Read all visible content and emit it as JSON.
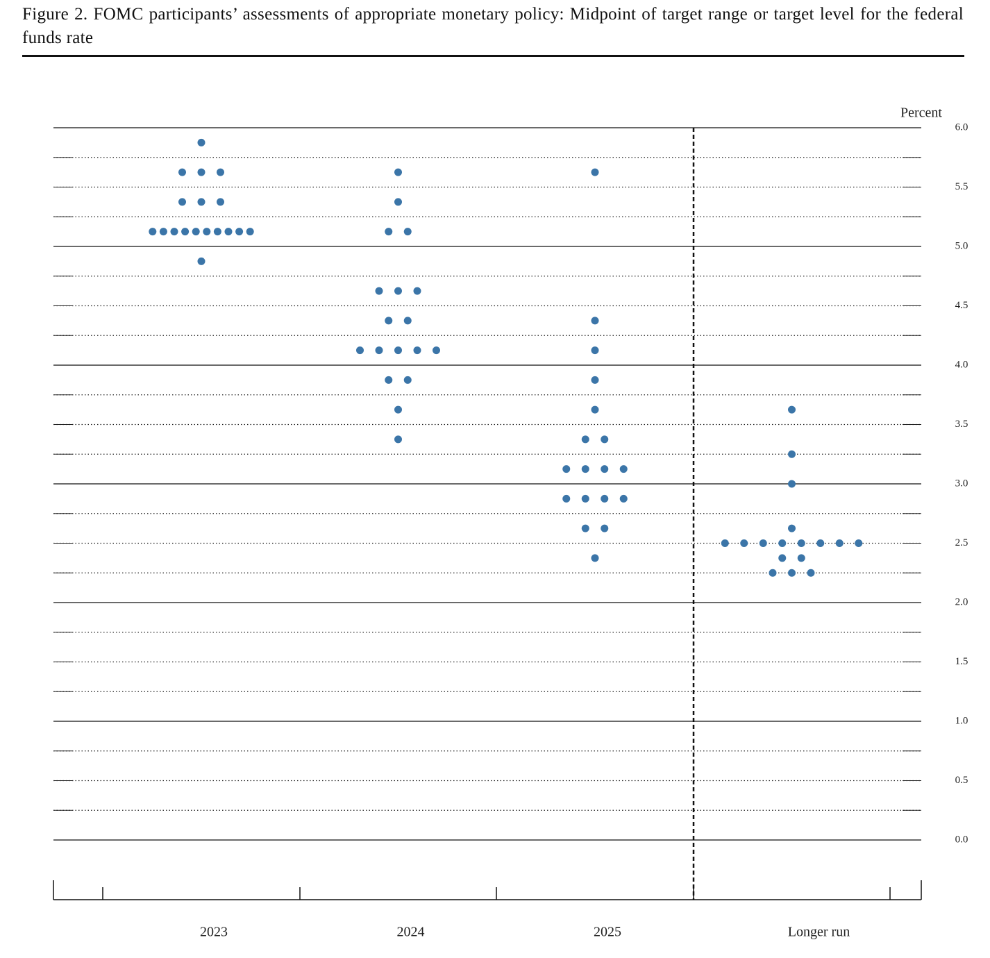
{
  "chart_data": {
    "type": "dot",
    "title": "Figure 2.  FOMC participants’ assessments of appropriate monetary policy: Midpoint of target range or target level for the federal funds rate",
    "y_axis_label": "Percent",
    "categories": [
      "2023",
      "2024",
      "2025",
      "Longer run"
    ],
    "color": "#3b75a8",
    "values": [
      [
        5.875,
        5.625,
        5.625,
        5.625,
        5.375,
        5.375,
        5.375,
        5.125,
        5.125,
        5.125,
        5.125,
        5.125,
        5.125,
        5.125,
        5.125,
        5.125,
        5.125,
        4.875
      ],
      [
        5.625,
        5.375,
        5.125,
        5.125,
        4.625,
        4.625,
        4.625,
        4.375,
        4.375,
        4.125,
        4.125,
        4.125,
        4.125,
        4.125,
        3.875,
        3.875,
        3.625,
        3.375
      ],
      [
        5.625,
        4.375,
        4.125,
        3.875,
        3.625,
        3.375,
        3.375,
        3.125,
        3.125,
        3.125,
        3.125,
        2.875,
        2.875,
        2.875,
        2.875,
        2.625,
        2.625,
        2.375
      ],
      [
        3.625,
        3.25,
        3.0,
        2.625,
        2.5,
        2.5,
        2.5,
        2.5,
        2.5,
        2.5,
        2.5,
        2.5,
        2.375,
        2.375,
        2.25,
        2.25,
        2.25
      ]
    ],
    "ylim": [
      0,
      6
    ],
    "yticks": [
      {
        "value": 0,
        "label": "0.0"
      },
      {
        "value": 0.5,
        "label": "0.5"
      },
      {
        "value": 1,
        "label": "1.0"
      },
      {
        "value": 1.5,
        "label": "1.5"
      },
      {
        "value": 2,
        "label": "2.0"
      },
      {
        "value": 2.5,
        "label": "2.5"
      },
      {
        "value": 3,
        "label": "3.0"
      },
      {
        "value": 3.5,
        "label": "3.5"
      },
      {
        "value": 4,
        "label": "4.0"
      },
      {
        "value": 4.5,
        "label": "4.5"
      },
      {
        "value": 5,
        "label": "5.0"
      },
      {
        "value": 5.5,
        "label": "5.5"
      },
      {
        "value": 6,
        "label": "6.0"
      }
    ],
    "minor_yticks": [
      0.25,
      0.75,
      1.25,
      1.75,
      2.25,
      2.75,
      3.25,
      3.75,
      4.25,
      4.75,
      5.25,
      5.75
    ],
    "grid": true
  }
}
